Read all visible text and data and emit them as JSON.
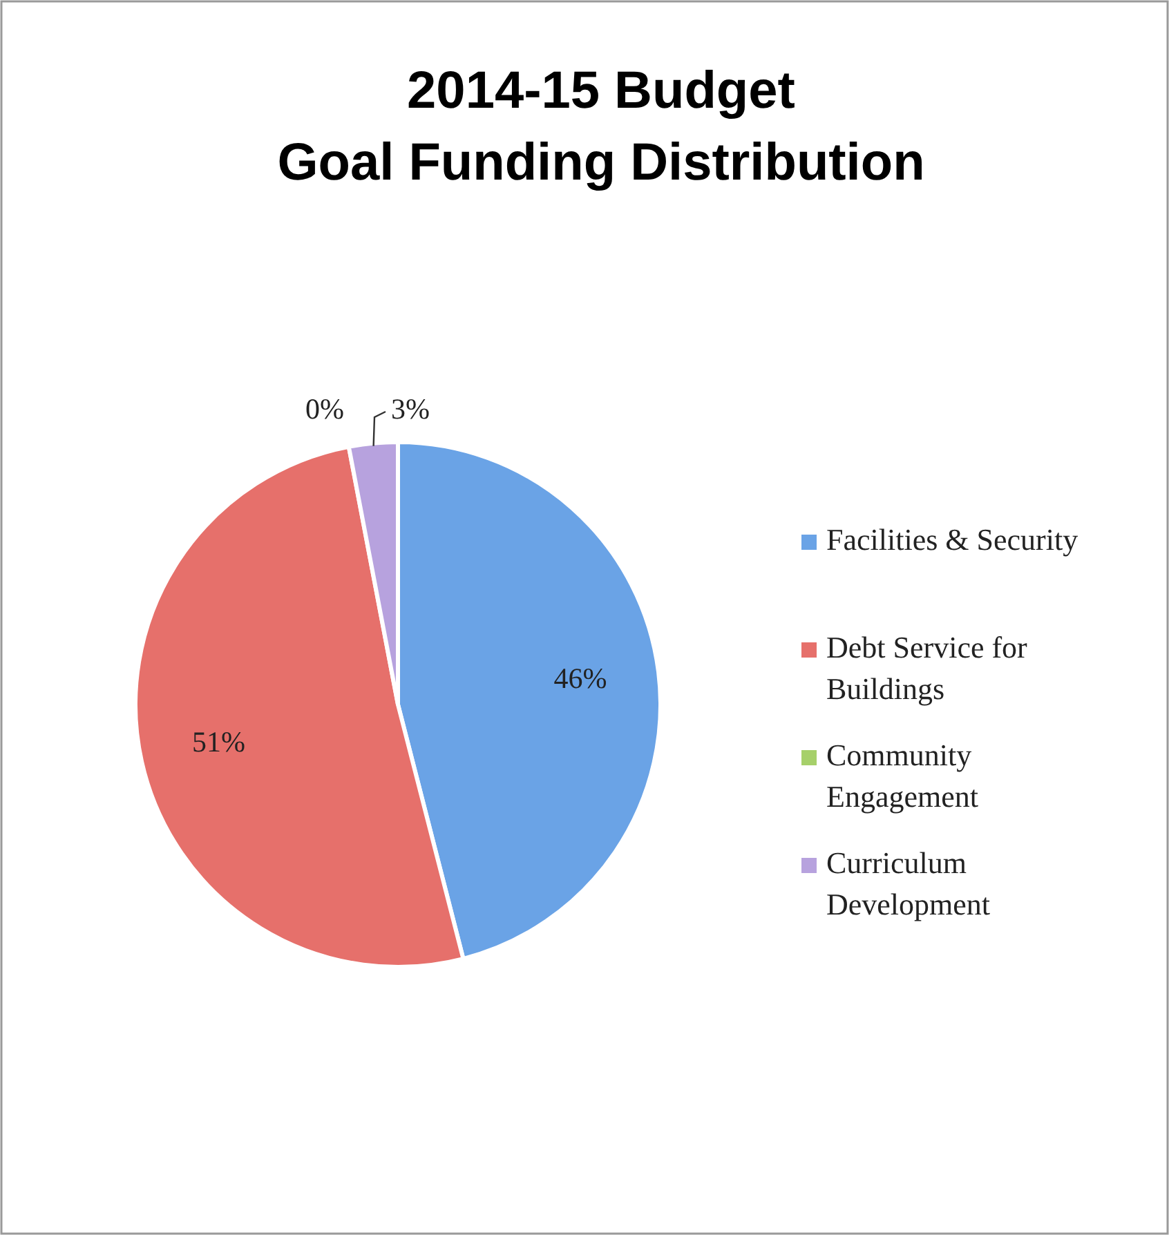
{
  "chart_data": {
    "type": "pie",
    "title": "2014-15 Budget\nGoal Funding Distribution",
    "categories": [
      "Facilities & Security",
      "Debt Service for Buildings",
      "Community Engagement",
      "Curriculum Development"
    ],
    "values": [
      46,
      51,
      0,
      3
    ],
    "colors": [
      "#6aa3e6",
      "#e6706b",
      "#a6d06a",
      "#b7a2de"
    ],
    "value_labels": [
      "46%",
      "51%",
      "0%",
      "3%"
    ],
    "legend": "right"
  }
}
